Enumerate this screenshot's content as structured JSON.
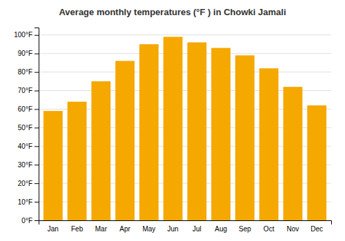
{
  "chart_data": {
    "type": "bar",
    "title": "Average monthly temperatures (°F ) in Chowki Jamali",
    "categories": [
      "Jan",
      "Feb",
      "Mar",
      "Apr",
      "May",
      "Jun",
      "Jul",
      "Aug",
      "Sep",
      "Oct",
      "Nov",
      "Dec"
    ],
    "values": [
      59,
      64,
      75,
      86,
      95,
      99,
      96,
      93,
      89,
      82,
      72,
      62
    ],
    "color": "#F5A800",
    "ylim": [
      0,
      104
    ],
    "yticks": [
      {
        "value": 0,
        "label": "0°F"
      },
      {
        "value": 10,
        "label": "10°F"
      },
      {
        "value": 20,
        "label": "20°F"
      },
      {
        "value": 30,
        "label": "30°F"
      },
      {
        "value": 40,
        "label": "40°F"
      },
      {
        "value": 50,
        "label": "50°F"
      },
      {
        "value": 60,
        "label": "60°F"
      },
      {
        "value": 70,
        "label": "70°F"
      },
      {
        "value": 80,
        "label": "80°F"
      },
      {
        "value": 90,
        "label": "90°F"
      },
      {
        "value": 100,
        "label": "100°F"
      }
    ],
    "grid": true
  }
}
